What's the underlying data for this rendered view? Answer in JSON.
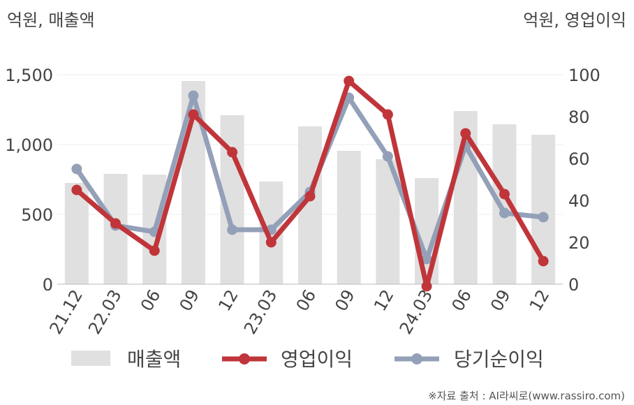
{
  "chart_data": {
    "type": "bar+line",
    "left_unit_label": "억원, 매출액",
    "right_unit_label": "억원, 영업이익",
    "categories": [
      "21.12",
      "22.03",
      "06",
      "09",
      "12",
      "23.03",
      "06",
      "09",
      "12",
      "24.03",
      "06",
      "09",
      "12"
    ],
    "left_axis": {
      "ylim": [
        0,
        1500
      ],
      "ticks": [
        0,
        500,
        1000,
        1500
      ],
      "tick_labels": [
        "0",
        "500",
        "1,000",
        "1,500"
      ]
    },
    "right_axis": {
      "ylim": [
        0,
        100
      ],
      "ticks": [
        0,
        20,
        40,
        60,
        80,
        100
      ],
      "tick_labels": [
        "0",
        "20",
        "40",
        "60",
        "80",
        "100"
      ]
    },
    "series": [
      {
        "name": "매출액",
        "kind": "bar",
        "axis": "left",
        "color": "#e0e0e0",
        "values": [
          725,
          790,
          785,
          1455,
          1210,
          735,
          1130,
          955,
          895,
          760,
          1240,
          1145,
          1070
        ]
      },
      {
        "name": "영업이익",
        "kind": "line",
        "axis": "right",
        "color": "#c0353a",
        "values": [
          45,
          29,
          16,
          81,
          63,
          20,
          42,
          97,
          81,
          -1,
          72,
          43,
          11
        ]
      },
      {
        "name": "당기순이익",
        "kind": "line",
        "axis": "right",
        "color": "#93a0b8",
        "values": [
          55,
          28,
          25,
          90,
          26,
          26,
          44,
          89,
          61,
          12,
          66,
          34,
          32
        ]
      }
    ],
    "legend_position": "bottom",
    "grid": true
  },
  "footer": {
    "source": "※자료 출처 : AI라씨로(www.rassiro.com)"
  }
}
